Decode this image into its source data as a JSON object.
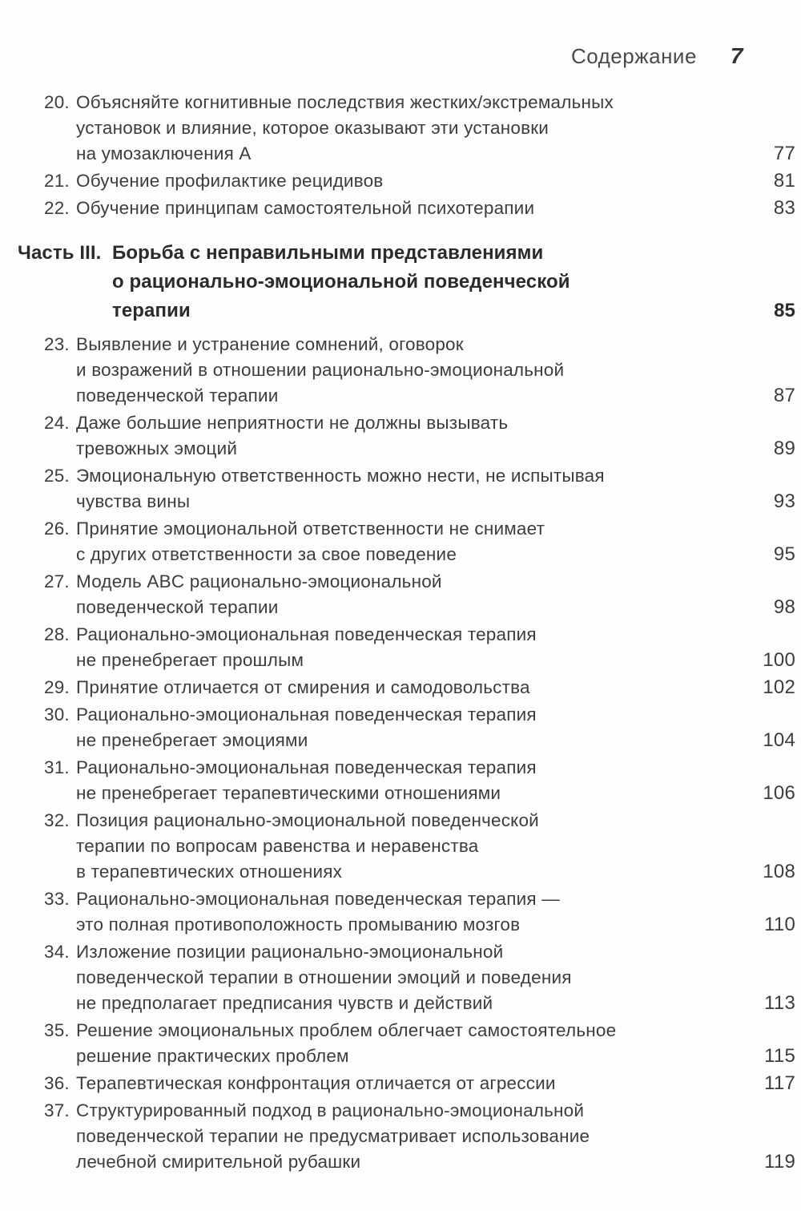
{
  "header": {
    "title": "Содержание",
    "page_number": "7"
  },
  "colors": {
    "background": "#fdfdfd",
    "text": "#3d3d3d",
    "heading": "#2b2b2b"
  },
  "toc": {
    "entries": [
      {
        "type": "item",
        "num": "20.",
        "lines": [
          "Объясняйте когнитивные последствия жестких/экстремальных",
          "установок и влияние, которое оказывают эти установки",
          "на умозаключения А"
        ],
        "page": "77"
      },
      {
        "type": "item",
        "num": "21.",
        "lines": [
          "Обучение профилактике рецидивов"
        ],
        "page": "81"
      },
      {
        "type": "item",
        "num": "22.",
        "lines": [
          "Обучение принципам самостоятельной психотерапии"
        ],
        "page": "83"
      },
      {
        "type": "part",
        "label": "Часть III.",
        "lines": [
          "Борьба с неправильными представлениями",
          "о рационально-эмоциональной поведенческой",
          "терапии"
        ],
        "page": "85"
      },
      {
        "type": "item",
        "num": "23.",
        "lines": [
          "Выявление и устранение сомнений, оговорок",
          "и возражений в отношении рационально-эмоциональной",
          "поведенческой терапии"
        ],
        "page": "87"
      },
      {
        "type": "item",
        "num": "24.",
        "lines": [
          "Даже большие неприятности не должны вызывать",
          "тревожных эмоций"
        ],
        "page": "89"
      },
      {
        "type": "item",
        "num": "25.",
        "lines": [
          "Эмоциональную ответственность можно нести, не испытывая",
          "чувства вины"
        ],
        "page": "93"
      },
      {
        "type": "item",
        "num": "26.",
        "lines": [
          "Принятие эмоциональной ответственности не снимает",
          "с других ответственности за свое поведение"
        ],
        "page": "95"
      },
      {
        "type": "item",
        "num": "27.",
        "lines": [
          "Модель ABC рационально-эмоциональной",
          "поведенческой терапии"
        ],
        "page": "98"
      },
      {
        "type": "item",
        "num": "28.",
        "lines": [
          "Рационально-эмоциональная поведенческая терапия",
          "не пренебрегает прошлым"
        ],
        "page": "100"
      },
      {
        "type": "item",
        "num": "29.",
        "lines": [
          "Принятие отличается от смирения и самодовольства"
        ],
        "page": "102"
      },
      {
        "type": "item",
        "num": "30.",
        "lines": [
          "Рационально-эмоциональная поведенческая терапия",
          "не пренебрегает эмоциями"
        ],
        "page": "104"
      },
      {
        "type": "item",
        "num": "31.",
        "lines": [
          "Рационально-эмоциональная поведенческая терапия",
          "не пренебрегает терапевтическими отношениями"
        ],
        "page": "106"
      },
      {
        "type": "item",
        "num": "32.",
        "lines": [
          "Позиция рационально-эмоциональной поведенческой",
          "терапии по вопросам равенства и неравенства",
          "в терапевтических отношениях"
        ],
        "page": "108"
      },
      {
        "type": "item",
        "num": "33.",
        "lines": [
          "Рационально-эмоциональная поведенческая терапия —",
          "это полная противоположность промыванию мозгов"
        ],
        "page": "110"
      },
      {
        "type": "item",
        "num": "34.",
        "lines": [
          "Изложение позиции рационально-эмоциональной",
          "поведенческой терапии в отношении эмоций и поведения",
          "не предполагает предписания чувств и действий"
        ],
        "page": "113"
      },
      {
        "type": "item",
        "num": "35.",
        "lines": [
          "Решение эмоциональных проблем облегчает самостоятельное",
          "решение практических проблем"
        ],
        "page": "115"
      },
      {
        "type": "item",
        "num": "36.",
        "lines": [
          "Терапевтическая конфронтация отличается от агрессии"
        ],
        "page": "117"
      },
      {
        "type": "item",
        "num": "37.",
        "lines": [
          "Структурированный подход в рационально-эмоциональной",
          "поведенческой терапии не предусматривает использование",
          "лечебной смирительной рубашки"
        ],
        "page": "119"
      }
    ]
  }
}
